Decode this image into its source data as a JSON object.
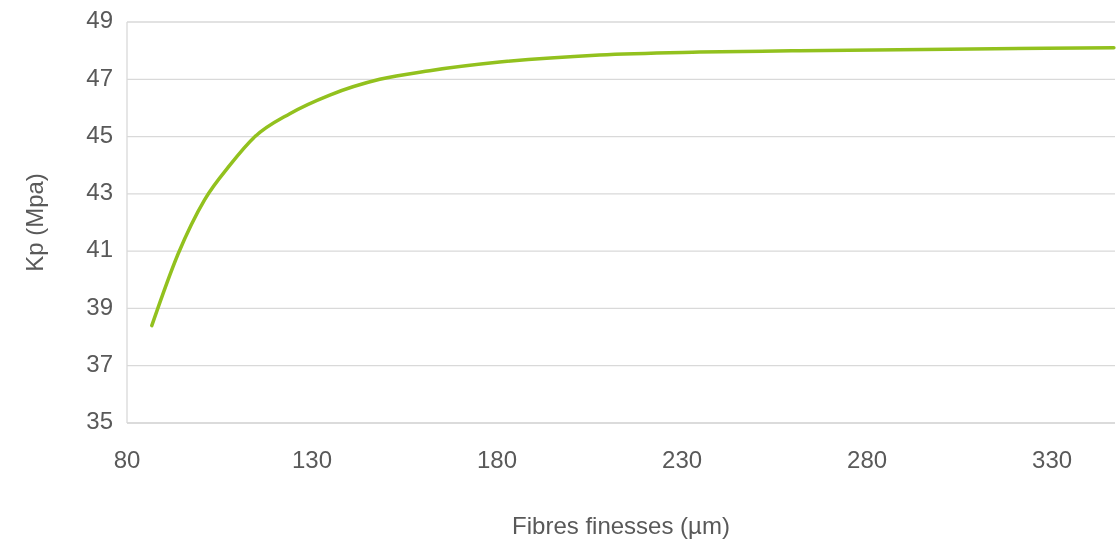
{
  "chart_data": {
    "type": "line",
    "xlabel": "Fibres finesses (µm)",
    "ylabel": "Kp (Mpa)",
    "x": [
      86.7,
      93.8,
      101,
      107.8,
      114.6,
      124,
      134.8,
      148.3,
      161.8,
      180.7,
      207.7,
      234.7,
      261.7,
      302,
      346.7
    ],
    "series": [
      {
        "color": "#92c11e",
        "values": [
          38.4,
          40.9,
          42.8,
          44.0,
          45.0,
          45.8,
          46.45,
          47.0,
          47.3,
          47.6,
          47.85,
          47.95,
          48.0,
          48.05,
          48.1
        ]
      }
    ],
    "xlim": [
      80,
      347
    ],
    "xticks": [
      80,
      130,
      180,
      230,
      280,
      330
    ],
    "ylim": [
      35,
      49
    ],
    "yticks": [
      35,
      37,
      39,
      41,
      43,
      45,
      47,
      49
    ],
    "grid": "y",
    "marker": "none",
    "line_style": "solid"
  }
}
